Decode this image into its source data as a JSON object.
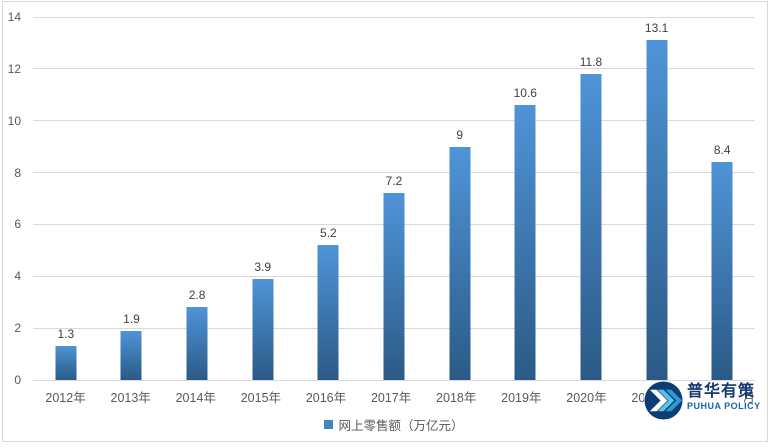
{
  "chart_data": {
    "type": "bar",
    "categories": [
      "2012年",
      "2013年",
      "2014年",
      "2015年",
      "2016年",
      "2017年",
      "2018年",
      "2019年",
      "2020年",
      "2021年",
      "2022年1-8月"
    ],
    "values": [
      1.3,
      1.9,
      2.8,
      3.9,
      5.2,
      7.2,
      9,
      10.6,
      11.8,
      13.1,
      8.4
    ],
    "series_name": "网上零售额（万亿元）",
    "title": "",
    "xlabel": "",
    "ylabel": "",
    "ylim": [
      0,
      14
    ],
    "y_ticks": [
      0,
      2,
      4,
      6,
      8,
      10,
      12,
      14
    ],
    "grid": true,
    "legend_position": "bottom",
    "data_labels": true
  },
  "legend": {
    "label": "网上零售额（万亿元）"
  },
  "watermark": {
    "cn": "普华有策",
    "en": "PUHUA POLICY"
  },
  "colors": {
    "bar-top": "#4f94d8",
    "bar-bottom": "#2b5a86",
    "gridline": "#d9d9d9",
    "frame": "#d9d9d9",
    "axis-text": "#595959",
    "value-text": "#3f3f3f",
    "legend-swatch": "#4485c0",
    "logo-navy": "#14386b",
    "logo-blue": "#1566b0",
    "logo-circle": "#0c3e73",
    "logo-chevron-1": "#ffffff",
    "logo-chevron-2": "#5bc2ea",
    "logo-chevron-3": "#2f99d8"
  }
}
